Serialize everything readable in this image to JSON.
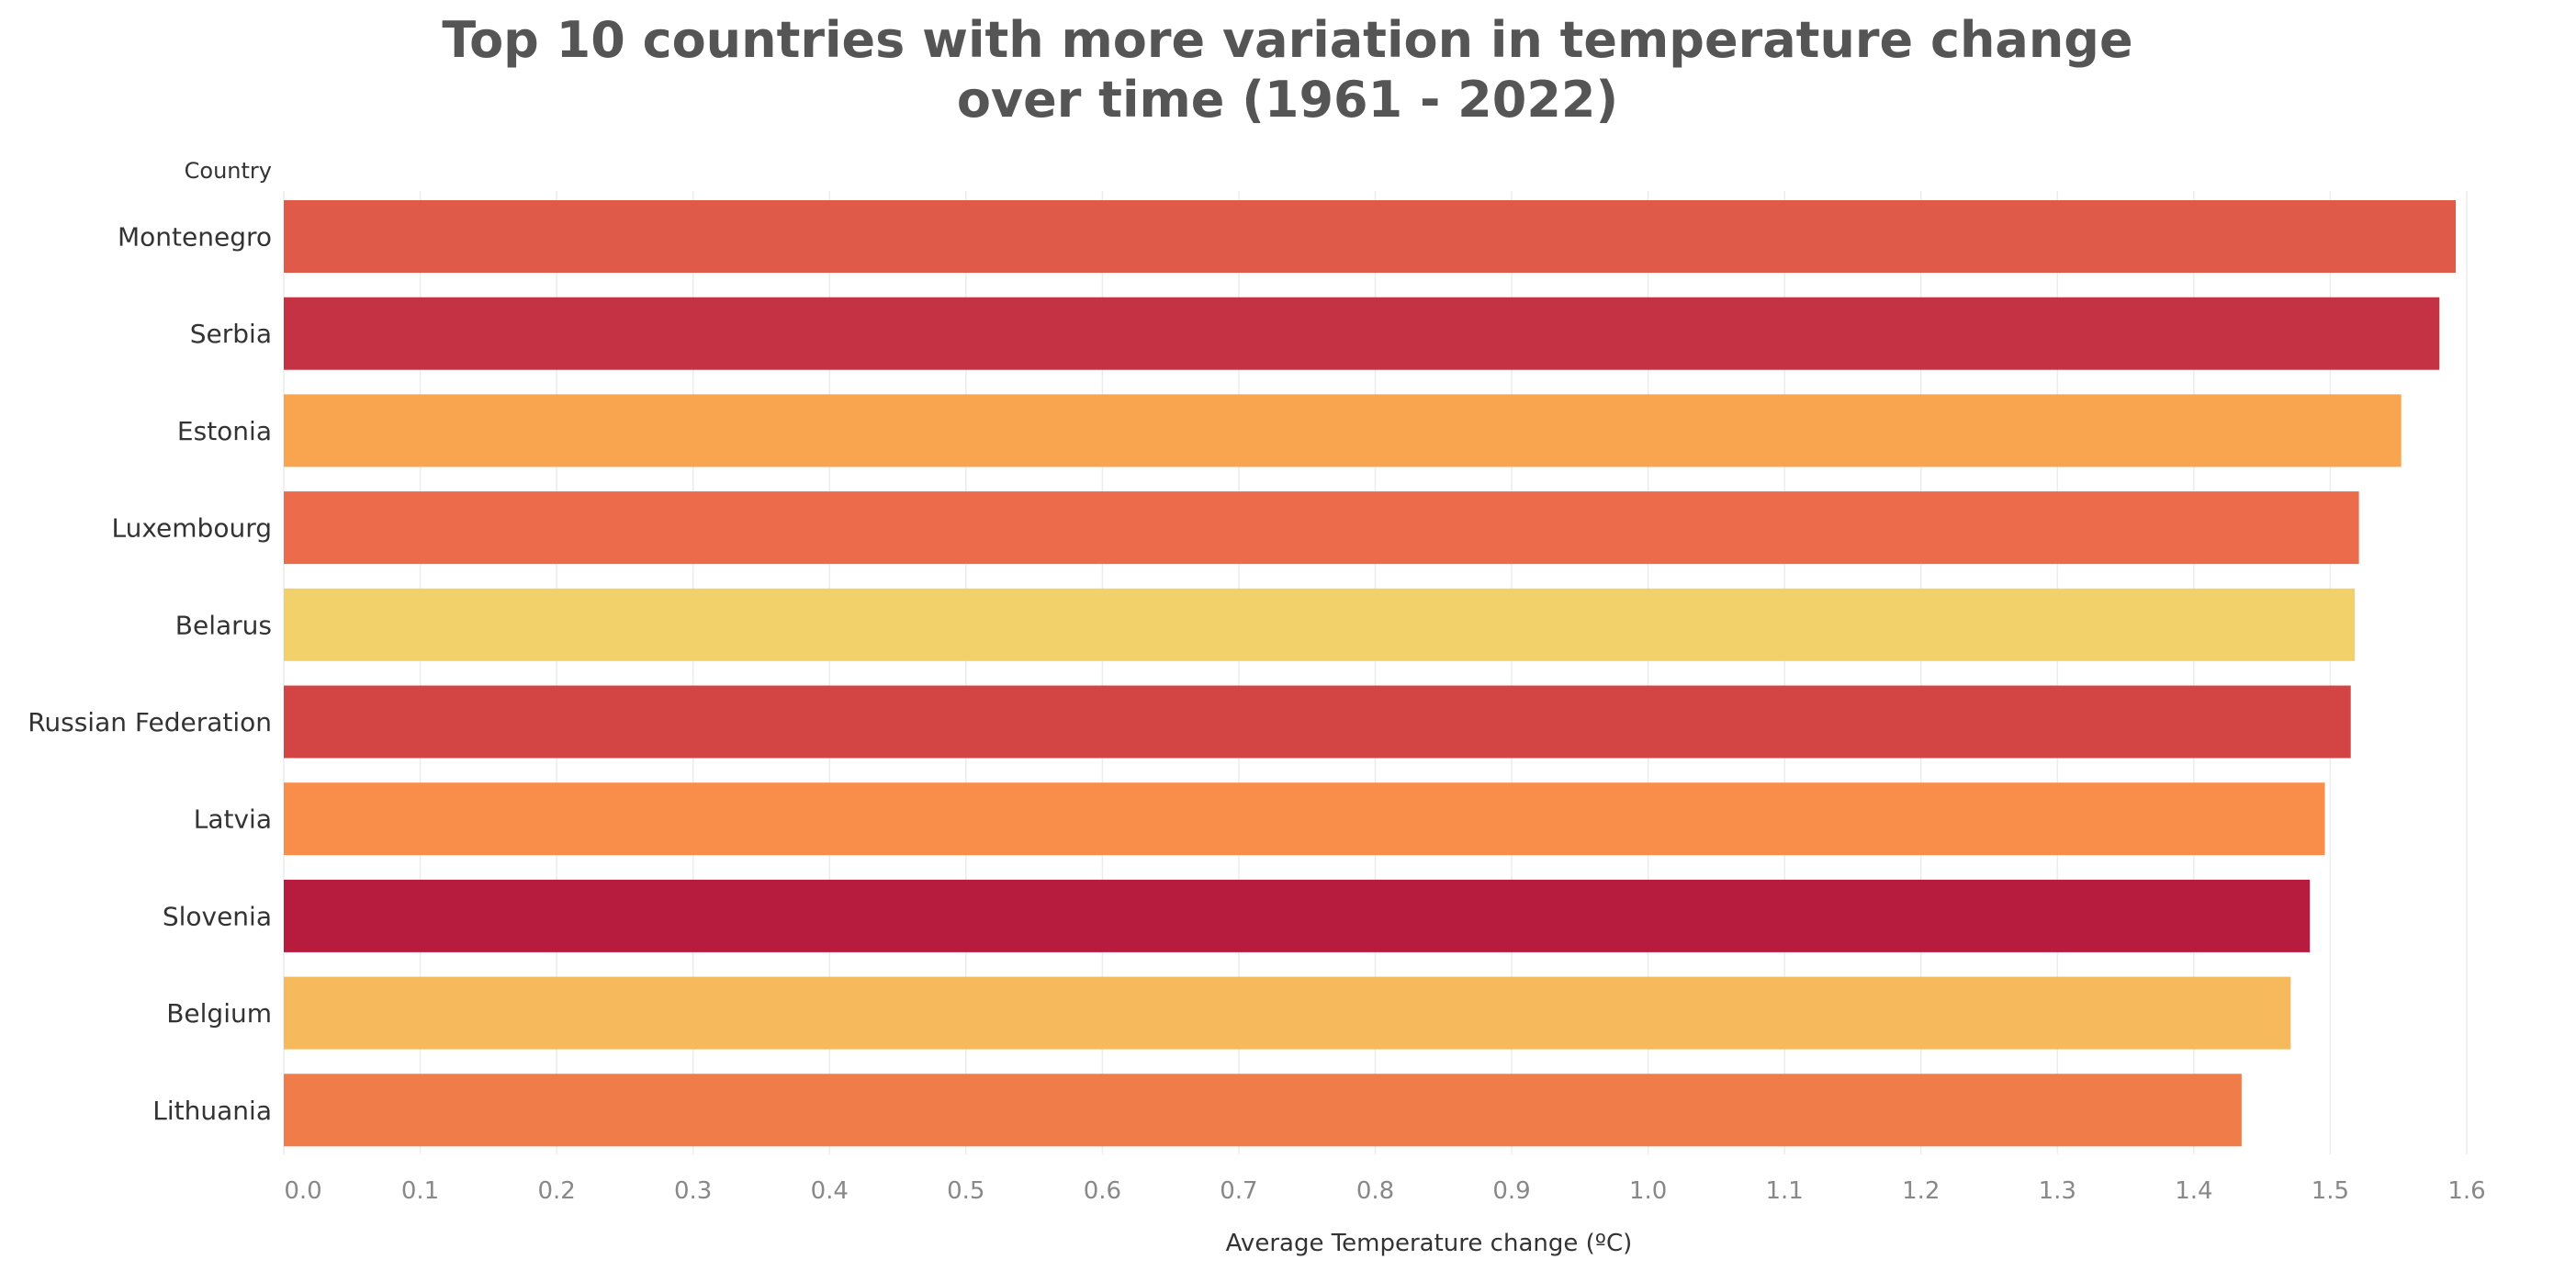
{
  "chart_data": {
    "type": "bar",
    "orientation": "horizontal",
    "title_lines": [
      "Top 10 countries with more variation in temperature change",
      "over time (1961 - 2022)"
    ],
    "xlabel": "Average Temperature change (ºC)",
    "ylabel": "Country",
    "categories": [
      "Montenegro",
      "Serbia",
      "Estonia",
      "Luxembourg",
      "Belarus",
      "Russian Federation",
      "Latvia",
      "Slovenia",
      "Belgium",
      "Lithuania"
    ],
    "values": [
      1.592,
      1.58,
      1.552,
      1.521,
      1.518,
      1.515,
      1.496,
      1.485,
      1.471,
      1.435
    ],
    "colors": [
      "#e05a4a",
      "#c53243",
      "#f9a44f",
      "#eb6b4b",
      "#f2d16a",
      "#d34545",
      "#f98e4b",
      "#b71c3e",
      "#f6b95b",
      "#f07c4a"
    ],
    "xlim": [
      0,
      1.6
    ],
    "xticks": [
      "0.0",
      "0.1",
      "0.2",
      "0.3",
      "0.4",
      "0.5",
      "0.6",
      "0.7",
      "0.8",
      "0.9",
      "1.0",
      "1.1",
      "1.2",
      "1.3",
      "1.4",
      "1.5",
      "1.6"
    ],
    "grid": true
  }
}
